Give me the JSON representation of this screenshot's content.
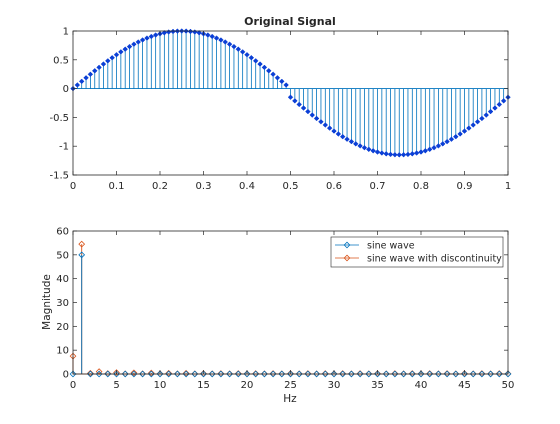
{
  "chart_data": [
    {
      "type": "stem",
      "title": "Original Signal",
      "xlabel": "",
      "ylabel": "",
      "xlim": [
        0,
        1
      ],
      "ylim": [
        -1.5,
        1
      ],
      "x_ticks": [
        0,
        0.1,
        0.2,
        0.3,
        0.4,
        0.5,
        0.6,
        0.7,
        0.8,
        0.9,
        1
      ],
      "y_ticks": [
        -1.5,
        -1,
        -0.5,
        0,
        0.5,
        1
      ],
      "x_tick_labels": [
        "0",
        "0.1",
        "0.2",
        "0.3",
        "0.4",
        "0.5",
        "0.6",
        "0.7",
        "0.8",
        "0.9",
        "1"
      ],
      "y_tick_labels": [
        "-1.5",
        "-1",
        "-0.5",
        "0",
        "0.5",
        "1"
      ],
      "grid": false,
      "color": "#0072bd",
      "marker_color": "#0b3fd6",
      "sample_step": 0.01,
      "segments": [
        {
          "x_start": 0,
          "x_end": 0.5,
          "formula": "sin(2*pi*x)"
        },
        {
          "x_start": 0.5,
          "x_end": 1.0,
          "formula": "sin(2*pi*x) - 0.15"
        }
      ]
    },
    {
      "type": "stem",
      "title": "",
      "xlabel": "Hz",
      "ylabel": "Magnitude",
      "xlim": [
        0,
        50
      ],
      "ylim": [
        0,
        60
      ],
      "x_ticks": [
        0,
        5,
        10,
        15,
        20,
        25,
        30,
        35,
        40,
        45,
        50
      ],
      "y_ticks": [
        0,
        10,
        20,
        30,
        40,
        50,
        60
      ],
      "x_tick_labels": [
        "0",
        "5",
        "10",
        "15",
        "20",
        "25",
        "30",
        "35",
        "40",
        "45",
        "50"
      ],
      "y_tick_labels": [
        "0",
        "10",
        "20",
        "30",
        "40",
        "50",
        "60"
      ],
      "grid": false,
      "legend_position": "top-right",
      "series": [
        {
          "name": "sine wave",
          "color": "#0072bd",
          "x": [
            0,
            1,
            2,
            3,
            4,
            5,
            6,
            7,
            8,
            9,
            10,
            11,
            12,
            13,
            14,
            15,
            16,
            17,
            18,
            19,
            20,
            21,
            22,
            23,
            24,
            25,
            26,
            27,
            28,
            29,
            30,
            31,
            32,
            33,
            34,
            35,
            36,
            37,
            38,
            39,
            40,
            41,
            42,
            43,
            44,
            45,
            46,
            47,
            48,
            49,
            50
          ],
          "y": [
            0,
            50,
            0,
            0,
            0,
            0,
            0,
            0,
            0,
            0,
            0,
            0,
            0,
            0,
            0,
            0,
            0,
            0,
            0,
            0,
            0,
            0,
            0,
            0,
            0,
            0,
            0,
            0,
            0,
            0,
            0,
            0,
            0,
            0,
            0,
            0,
            0,
            0,
            0,
            0,
            0,
            0,
            0,
            0,
            0,
            0,
            0,
            0,
            0,
            0,
            0
          ]
        },
        {
          "name": "sine wave with discontinuity",
          "color": "#d95319",
          "x": [
            0,
            1,
            2,
            3,
            4,
            5,
            6,
            7,
            8,
            9,
            10,
            11,
            12,
            13,
            14,
            15,
            16,
            17,
            18,
            19,
            20,
            21,
            22,
            23,
            24,
            25,
            26,
            27,
            28,
            29,
            30,
            31,
            32,
            33,
            34,
            35,
            36,
            37,
            38,
            39,
            40,
            41,
            42,
            43,
            44,
            45,
            46,
            47,
            48,
            49,
            50
          ],
          "y": [
            7.5,
            54.5,
            0.3,
            1.0,
            0.2,
            0.6,
            0.1,
            0.5,
            0.1,
            0.4,
            0.1,
            0.3,
            0.1,
            0.3,
            0.1,
            0.2,
            0.1,
            0.2,
            0.1,
            0.2,
            0.1,
            0.2,
            0.1,
            0.2,
            0.1,
            0.2,
            0.1,
            0.2,
            0.1,
            0.2,
            0.1,
            0.2,
            0.1,
            0.2,
            0.1,
            0.2,
            0.1,
            0.2,
            0.1,
            0.2,
            0.1,
            0.2,
            0.1,
            0.2,
            0.1,
            0.2,
            0.1,
            0.2,
            0.1,
            0.2,
            0.1
          ]
        }
      ]
    }
  ]
}
